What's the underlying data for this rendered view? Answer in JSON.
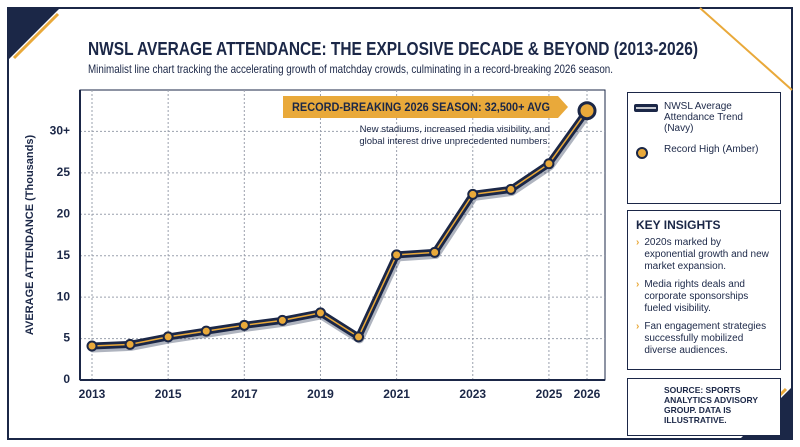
{
  "chart_data": {
    "type": "line",
    "title": "NWSL AVERAGE ATTENDANCE: THE EXPLOSIVE DECADE & BEYOND (2013-2026)",
    "subtitle": "Minimalist line chart tracking the accelerating growth of matchday crowds, culminating in a record-breaking 2026 season.",
    "y_label": "AVERAGE ATTENDANCE (Thousands)",
    "x": [
      2013,
      2014,
      2015,
      2016,
      2017,
      2018,
      2019,
      2020,
      2021,
      2022,
      2023,
      2024,
      2025,
      2026
    ],
    "series": [
      {
        "name": "NWSL Average Attendance Trend (Navy)",
        "color": "#1b2747",
        "marker_color": "#e9a93a",
        "values": [
          4.1,
          4.3,
          5.2,
          5.9,
          6.6,
          7.2,
          8.1,
          5.2,
          15.1,
          15.4,
          22.4,
          23.0,
          26.1,
          32.5
        ]
      }
    ],
    "highlight": {
      "name": "Record High (Amber)",
      "color": "#e9a93a"
    },
    "xlim": [
      2013,
      2026
    ],
    "xticks": [
      2013,
      2015,
      2017,
      2019,
      2021,
      2023,
      2025,
      2026
    ],
    "ylim": [
      0,
      35
    ],
    "yticks": [
      0,
      5,
      10,
      15,
      20,
      25,
      {
        "value": 30,
        "label": "30+"
      }
    ],
    "grid": true,
    "annotation": {
      "title": "RECORD-BREAKING 2026 SEASON: 32,500+ AVG",
      "note": "New stadiums, increased media visibility, and global interest drive unprecedented numbers."
    },
    "insights": {
      "title": "KEY INSIGHTS",
      "items": [
        "2020s marked by exponential growth and new market expansion.",
        "Media rights deals and corporate sponsorships fueled visibility.",
        "Fan engagement strategies successfully mobilized diverse audiences."
      ]
    },
    "source": "SOURCE: SPORTS ANALYTICS ADVISORY GROUP. DATA IS ILLUSTRATIVE."
  }
}
